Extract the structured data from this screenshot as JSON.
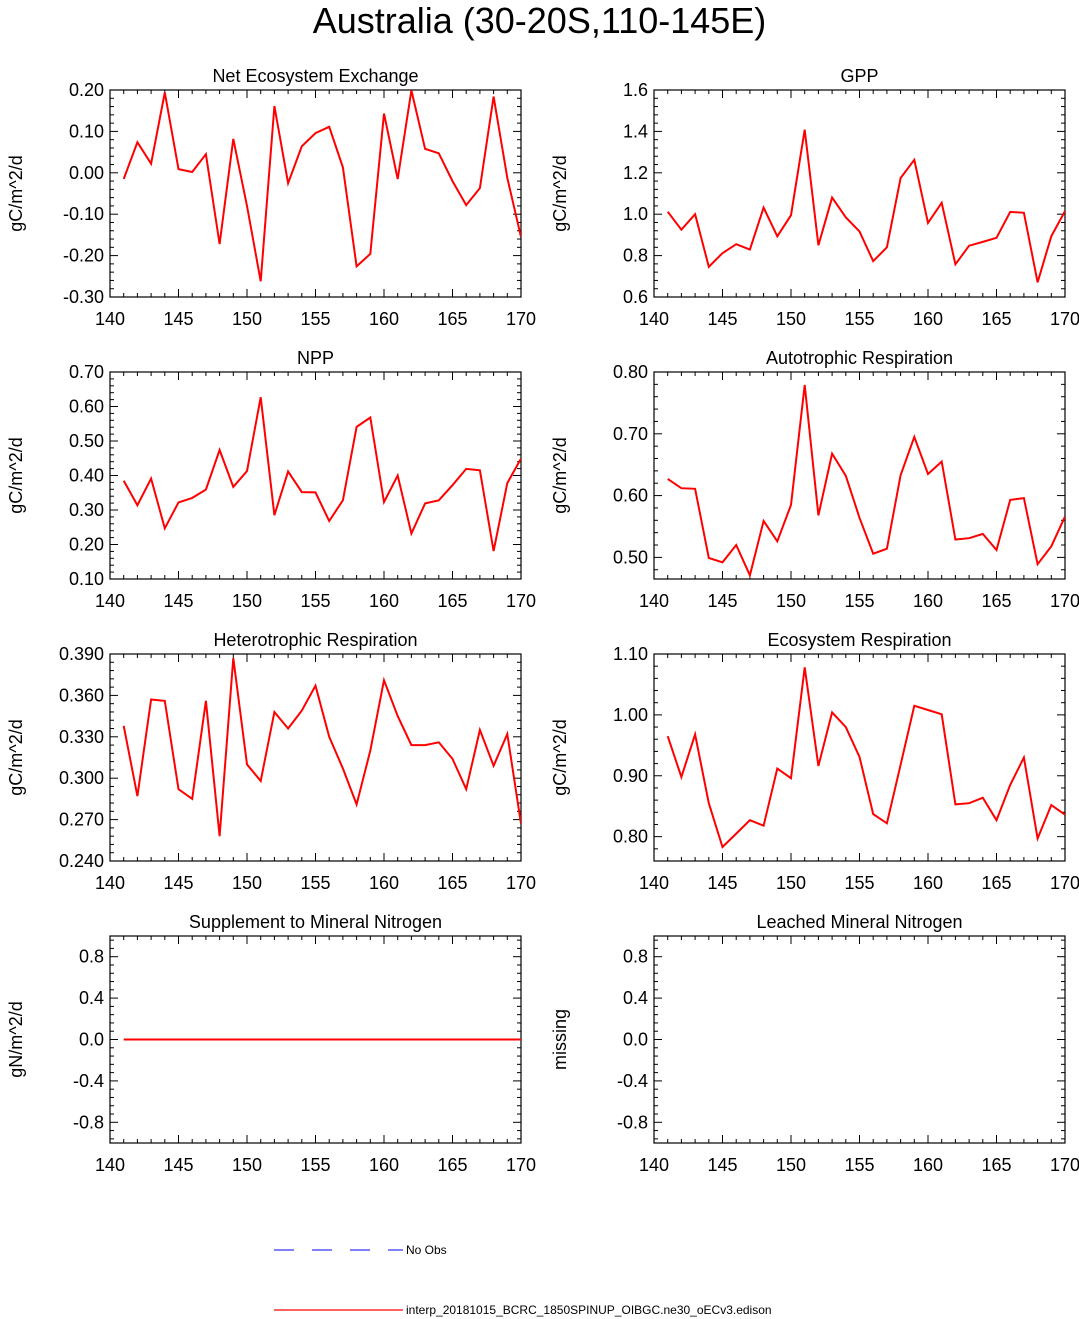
{
  "title": "Australia (30-20S,110-145E)",
  "colors": {
    "model": "#ff0000",
    "obs": "#3333ff",
    "axis": "#000000"
  },
  "legend": {
    "obs_label": "No Obs",
    "model_label": "interp_20181015_BCRC_1850SPINUP_OIBGC.ne30_oECv3.edison"
  },
  "chart_data": [
    {
      "type": "line",
      "title": "Net Ecosystem Exchange",
      "ylabel": "gC/m^2/d",
      "xlabel": "",
      "xlim": [
        140,
        170
      ],
      "ylim": [
        -0.3,
        0.2
      ],
      "xticks": [
        140,
        145,
        150,
        155,
        160,
        165,
        170
      ],
      "yticks": [
        -0.3,
        -0.2,
        -0.1,
        0.0,
        0.1,
        0.2
      ],
      "ytick_labels": [
        "-0.30",
        "-0.20",
        "-0.10",
        "0.00",
        "0.10",
        "0.20"
      ],
      "x": [
        141,
        142,
        143,
        144,
        145,
        146,
        147,
        148,
        149,
        150,
        151,
        152,
        153,
        154,
        155,
        156,
        157,
        158,
        159,
        160,
        161,
        162,
        163,
        164,
        165,
        166,
        167,
        168,
        169,
        170
      ],
      "series": [
        {
          "name": "interp_20181015_BCRC_1850SPINUP_OIBGC.ne30_oECv3.edison",
          "values": [
            -0.015,
            0.074,
            0.022,
            0.194,
            0.009,
            0.002,
            0.045,
            -0.172,
            0.082,
            -0.08,
            -0.262,
            0.161,
            -0.025,
            0.064,
            0.096,
            0.111,
            0.013,
            -0.226,
            -0.196,
            0.143,
            -0.015,
            0.199,
            0.058,
            0.047,
            -0.02,
            -0.078,
            -0.037,
            0.184,
            -0.012,
            -0.155
          ]
        }
      ]
    },
    {
      "type": "line",
      "title": "GPP",
      "ylabel": "gC/m^2/d",
      "xlabel": "",
      "xlim": [
        140,
        170
      ],
      "ylim": [
        0.6,
        1.6
      ],
      "xticks": [
        140,
        145,
        150,
        155,
        160,
        165,
        170
      ],
      "yticks": [
        0.6,
        0.8,
        1.0,
        1.2,
        1.4,
        1.6
      ],
      "ytick_labels": [
        "0.6",
        "0.8",
        "1.0",
        "1.2",
        "1.4",
        "1.6"
      ],
      "x": [
        141,
        142,
        143,
        144,
        145,
        146,
        147,
        148,
        149,
        150,
        151,
        152,
        153,
        154,
        155,
        156,
        157,
        158,
        159,
        160,
        161,
        162,
        163,
        164,
        165,
        166,
        167,
        168,
        169,
        170
      ],
      "series": [
        {
          "name": "interp_20181015_BCRC_1850SPINUP_OIBGC.ne30_oECv3.edison",
          "values": [
            1.012,
            0.925,
            1.0,
            0.746,
            0.812,
            0.855,
            0.829,
            1.032,
            0.893,
            0.995,
            1.408,
            0.85,
            1.08,
            0.985,
            0.917,
            0.773,
            0.84,
            1.175,
            1.263,
            0.958,
            1.055,
            0.758,
            0.848,
            0.866,
            0.886,
            1.011,
            1.007,
            0.671,
            0.893,
            1.015
          ]
        }
      ]
    },
    {
      "type": "line",
      "title": "NPP",
      "ylabel": "gC/m^2/d",
      "xlabel": "",
      "xlim": [
        140,
        170
      ],
      "ylim": [
        0.1,
        0.7
      ],
      "xticks": [
        140,
        145,
        150,
        155,
        160,
        165,
        170
      ],
      "yticks": [
        0.1,
        0.2,
        0.3,
        0.4,
        0.5,
        0.6,
        0.7
      ],
      "ytick_labels": [
        "0.10",
        "0.20",
        "0.30",
        "0.40",
        "0.50",
        "0.60",
        "0.70"
      ],
      "x": [
        141,
        142,
        143,
        144,
        145,
        146,
        147,
        148,
        149,
        150,
        151,
        152,
        153,
        154,
        155,
        156,
        157,
        158,
        159,
        160,
        161,
        162,
        163,
        164,
        165,
        166,
        167,
        168,
        169,
        170
      ],
      "series": [
        {
          "name": "interp_20181015_BCRC_1850SPINUP_OIBGC.ne30_oECv3.edison",
          "values": [
            0.385,
            0.314,
            0.391,
            0.247,
            0.322,
            0.335,
            0.359,
            0.474,
            0.367,
            0.413,
            0.627,
            0.285,
            0.412,
            0.352,
            0.351,
            0.268,
            0.328,
            0.541,
            0.568,
            0.323,
            0.4,
            0.232,
            0.319,
            0.328,
            0.372,
            0.419,
            0.415,
            0.181,
            0.378,
            0.449
          ]
        }
      ]
    },
    {
      "type": "line",
      "title": "Autotrophic Respiration",
      "ylabel": "gC/m^2/d",
      "xlabel": "",
      "xlim": [
        140,
        170
      ],
      "ylim": [
        0.465,
        0.8
      ],
      "xticks": [
        140,
        145,
        150,
        155,
        160,
        165,
        170
      ],
      "yticks": [
        0.5,
        0.6,
        0.7,
        0.8
      ],
      "ytick_labels": [
        "0.50",
        "0.60",
        "0.70",
        "0.80"
      ],
      "x": [
        141,
        142,
        143,
        144,
        145,
        146,
        147,
        148,
        149,
        150,
        151,
        152,
        153,
        154,
        155,
        156,
        157,
        158,
        159,
        160,
        161,
        162,
        163,
        164,
        165,
        166,
        167,
        168,
        169,
        170
      ],
      "series": [
        {
          "name": "interp_20181015_BCRC_1850SPINUP_OIBGC.ne30_oECv3.edison",
          "values": [
            0.627,
            0.612,
            0.611,
            0.499,
            0.492,
            0.52,
            0.471,
            0.559,
            0.526,
            0.585,
            0.779,
            0.568,
            0.668,
            0.632,
            0.564,
            0.506,
            0.514,
            0.633,
            0.695,
            0.635,
            0.655,
            0.529,
            0.531,
            0.538,
            0.512,
            0.593,
            0.596,
            0.489,
            0.518,
            0.566
          ]
        }
      ]
    },
    {
      "type": "line",
      "title": "Heterotrophic Respiration",
      "ylabel": "gC/m^2/d",
      "xlabel": "",
      "xlim": [
        140,
        170
      ],
      "ylim": [
        0.24,
        0.39
      ],
      "xticks": [
        140,
        145,
        150,
        155,
        160,
        165,
        170
      ],
      "yticks": [
        0.24,
        0.27,
        0.3,
        0.33,
        0.36,
        0.39
      ],
      "ytick_labels": [
        "0.240",
        "0.270",
        "0.300",
        "0.330",
        "0.360",
        "0.390"
      ],
      "x": [
        141,
        142,
        143,
        144,
        145,
        146,
        147,
        148,
        149,
        150,
        151,
        152,
        153,
        154,
        155,
        156,
        157,
        158,
        159,
        160,
        161,
        162,
        163,
        164,
        165,
        166,
        167,
        168,
        169,
        170
      ],
      "series": [
        {
          "name": "interp_20181015_BCRC_1850SPINUP_OIBGC.ne30_oECv3.edison",
          "values": [
            0.338,
            0.287,
            0.357,
            0.356,
            0.292,
            0.285,
            0.356,
            0.258,
            0.387,
            0.31,
            0.298,
            0.348,
            0.336,
            0.349,
            0.367,
            0.33,
            0.307,
            0.281,
            0.32,
            0.371,
            0.345,
            0.324,
            0.324,
            0.326,
            0.314,
            0.292,
            0.335,
            0.309,
            0.332,
            0.267
          ]
        }
      ]
    },
    {
      "type": "line",
      "title": "Ecosystem Respiration",
      "ylabel": "gC/m^2/d",
      "xlabel": "",
      "xlim": [
        140,
        170
      ],
      "ylim": [
        0.76,
        1.1
      ],
      "xticks": [
        140,
        145,
        150,
        155,
        160,
        165,
        170
      ],
      "yticks": [
        0.8,
        0.9,
        1.0,
        1.1
      ],
      "ytick_labels": [
        "0.80",
        "0.90",
        "1.00",
        "1.10"
      ],
      "x": [
        141,
        142,
        143,
        144,
        145,
        146,
        147,
        148,
        149,
        150,
        151,
        152,
        153,
        154,
        155,
        156,
        157,
        158,
        159,
        160,
        161,
        162,
        163,
        164,
        165,
        166,
        167,
        168,
        169,
        170
      ],
      "series": [
        {
          "name": "interp_20181015_BCRC_1850SPINUP_OIBGC.ne30_oECv3.edison",
          "values": [
            0.965,
            0.898,
            0.968,
            0.855,
            0.783,
            0.805,
            0.827,
            0.818,
            0.912,
            0.896,
            1.078,
            0.916,
            1.004,
            0.98,
            0.931,
            0.837,
            0.822,
            0.918,
            1.015,
            1.008,
            1.001,
            0.853,
            0.855,
            0.864,
            0.827,
            0.885,
            0.93,
            0.797,
            0.852,
            0.836
          ]
        }
      ]
    },
    {
      "type": "line",
      "title": "Supplement to Mineral Nitrogen",
      "ylabel": "gN/m^2/d",
      "xlabel": "",
      "xlim": [
        140,
        170
      ],
      "ylim": [
        -1.0,
        1.0
      ],
      "xticks": [
        140,
        145,
        150,
        155,
        160,
        165,
        170
      ],
      "yticks": [
        -0.8,
        -0.4,
        0.0,
        0.4,
        0.8
      ],
      "ytick_labels": [
        "-0.8",
        "-0.4",
        "0.0",
        "0.4",
        "0.8"
      ],
      "x": [
        141,
        142,
        143,
        144,
        145,
        146,
        147,
        148,
        149,
        150,
        151,
        152,
        153,
        154,
        155,
        156,
        157,
        158,
        159,
        160,
        161,
        162,
        163,
        164,
        165,
        166,
        167,
        168,
        169,
        170
      ],
      "series": [
        {
          "name": "interp_20181015_BCRC_1850SPINUP_OIBGC.ne30_oECv3.edison",
          "values": [
            0,
            0,
            0,
            0,
            0,
            0,
            0,
            0,
            0,
            0,
            0,
            0,
            0,
            0,
            0,
            0,
            0,
            0,
            0,
            0,
            0,
            0,
            0,
            0,
            0,
            0,
            0,
            0,
            0,
            0
          ]
        }
      ]
    },
    {
      "type": "line",
      "title": "Leached Mineral Nitrogen",
      "ylabel": "missing",
      "xlabel": "",
      "xlim": [
        140,
        170
      ],
      "ylim": [
        -1.0,
        1.0
      ],
      "xticks": [
        140,
        145,
        150,
        155,
        160,
        165,
        170
      ],
      "yticks": [
        -0.8,
        -0.4,
        0.0,
        0.4,
        0.8
      ],
      "ytick_labels": [
        "-0.8",
        "-0.4",
        "0.0",
        "0.4",
        "0.8"
      ],
      "x": [],
      "series": []
    }
  ]
}
